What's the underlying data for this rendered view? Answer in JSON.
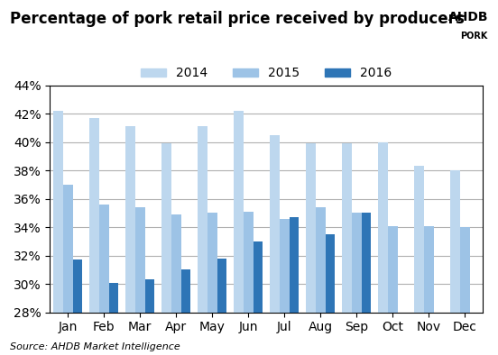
{
  "chart_data": {
    "type": "bar",
    "title": "Percentage of pork retail price received by producers",
    "annotations": [
      "Source: AHDB Market Intelligence",
      "AHDB",
      "PORK"
    ],
    "categories": [
      "Jan",
      "Feb",
      "Mar",
      "Apr",
      "May",
      "Jun",
      "Jul",
      "Aug",
      "Sep",
      "Oct",
      "Nov",
      "Dec"
    ],
    "series": [
      {
        "name": "2014",
        "color": "#bdd7ee",
        "values": [
          42.2,
          41.7,
          41.1,
          39.9,
          41.1,
          42.2,
          40.5,
          39.9,
          39.9,
          40.0,
          38.3,
          38.0
        ]
      },
      {
        "name": "2015",
        "color": "#9dc3e6",
        "values": [
          37.0,
          35.6,
          35.4,
          34.9,
          35.0,
          35.1,
          34.6,
          35.4,
          35.0,
          34.1,
          34.1,
          34.0
        ]
      },
      {
        "name": "2016",
        "color": "#2e75b6",
        "values": [
          31.7,
          30.1,
          30.3,
          31.0,
          31.8,
          33.0,
          34.7,
          33.5,
          35.0,
          null,
          null,
          null
        ]
      }
    ],
    "ylim": [
      28,
      44
    ],
    "yticks": [
      {
        "value": 28,
        "label": "28%"
      },
      {
        "value": 30,
        "label": "30%"
      },
      {
        "value": 32,
        "label": "32%"
      },
      {
        "value": 34,
        "label": "34%"
      },
      {
        "value": 36,
        "label": "36%"
      },
      {
        "value": 38,
        "label": "38%"
      },
      {
        "value": 40,
        "label": "40%"
      },
      {
        "value": 42,
        "label": "42%"
      },
      {
        "value": 44,
        "label": "44%"
      }
    ],
    "grid": true,
    "legend": "upper center"
  }
}
